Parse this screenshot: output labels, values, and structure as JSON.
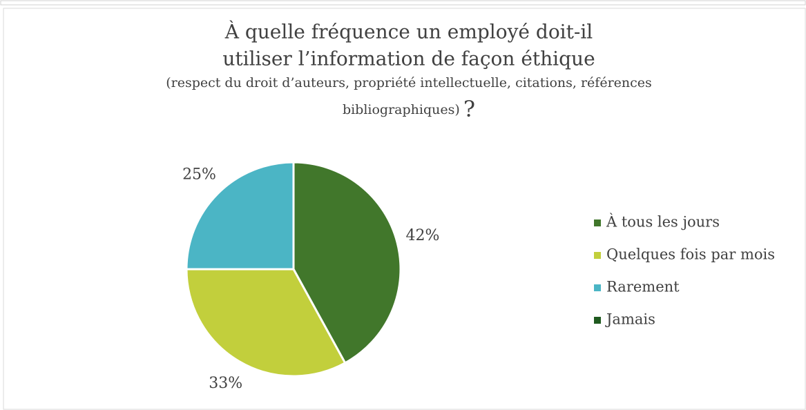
{
  "chart_data": {
    "type": "pie",
    "title": [
      "À quelle fréquence un employé doit-il",
      "utiliser l’information de façon éthique"
    ],
    "subtitle": [
      "(respect du droit d’auteurs, propriété intellectuelle, citations, références",
      "bibliographiques)"
    ],
    "title_suffix": "?",
    "categories": [
      "À tous les jours",
      "Quelques fois par mois",
      "Rarement",
      "Jamais"
    ],
    "values": [
      42,
      33,
      25,
      0
    ],
    "value_labels": [
      "42%",
      "33%",
      "25%",
      null
    ],
    "colors": [
      "#41772b",
      "#c2cf3c",
      "#4bb5c5",
      "#1f5a1f"
    ],
    "legend": "right"
  }
}
